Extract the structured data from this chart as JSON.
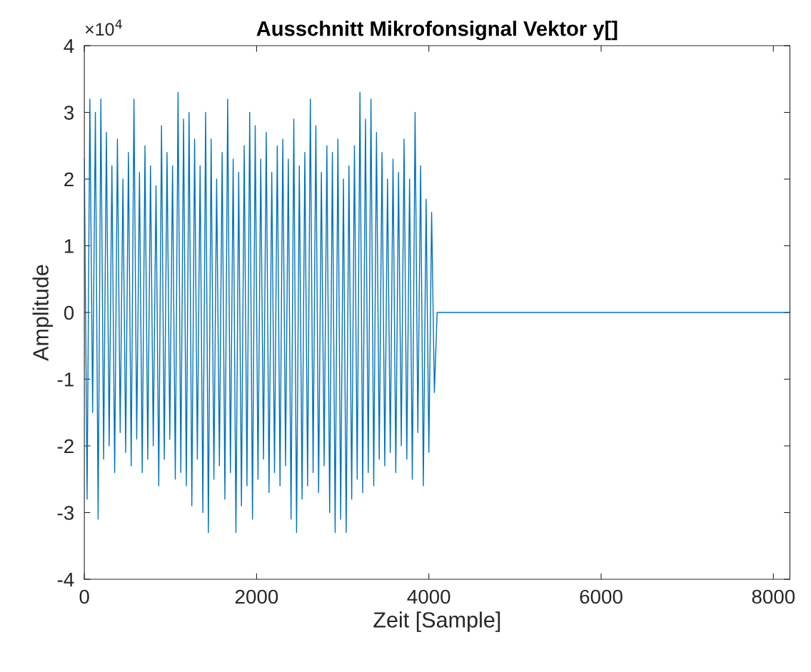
{
  "chart_data": {
    "type": "line",
    "title": "Ausschnitt Mikrofonsignal Vektor y[]",
    "xlabel": "Zeit [Sample]",
    "ylabel": "Amplitude",
    "annotations": [
      "×10$^{4}$"
    ],
    "x": [
      0,
      32,
      64,
      96,
      128,
      160,
      192,
      224,
      256,
      288,
      320,
      352,
      384,
      416,
      448,
      480,
      512,
      544,
      576,
      608,
      640,
      672,
      704,
      736,
      768,
      800,
      832,
      864,
      896,
      928,
      960,
      992,
      1024,
      1056,
      1088,
      1120,
      1152,
      1184,
      1216,
      1248,
      1280,
      1312,
      1344,
      1376,
      1408,
      1440,
      1472,
      1504,
      1536,
      1568,
      1600,
      1632,
      1664,
      1696,
      1728,
      1760,
      1792,
      1824,
      1856,
      1888,
      1920,
      1952,
      1984,
      2016,
      2048,
      2080,
      2112,
      2144,
      2176,
      2208,
      2240,
      2272,
      2304,
      2336,
      2368,
      2400,
      2432,
      2464,
      2496,
      2528,
      2560,
      2592,
      2624,
      2656,
      2688,
      2720,
      2752,
      2784,
      2816,
      2848,
      2880,
      2912,
      2944,
      2976,
      3008,
      3040,
      3072,
      3104,
      3136,
      3168,
      3200,
      3232,
      3264,
      3296,
      3328,
      3360,
      3392,
      3424,
      3456,
      3488,
      3520,
      3552,
      3584,
      3616,
      3648,
      3680,
      3712,
      3744,
      3776,
      3808,
      3840,
      3872,
      3904,
      3936,
      3968,
      4000,
      4032,
      4064,
      4096,
      8192
    ],
    "series": [
      {
        "color": "#0072bd",
        "values": [
          2.3,
          -2.8,
          3.2,
          -1.5,
          3.0,
          -3.1,
          3.2,
          -2.2,
          2.7,
          -2.0,
          2.2,
          -2.4,
          2.6,
          -1.8,
          2.0,
          -2.1,
          2.4,
          -2.3,
          3.2,
          -1.9,
          2.1,
          -2.4,
          2.5,
          -2.2,
          2.2,
          -2.0,
          1.9,
          -2.6,
          2.8,
          -2.2,
          2.4,
          -1.9,
          2.2,
          -2.5,
          3.3,
          -2.4,
          2.9,
          -2.6,
          3.0,
          -2.9,
          2.6,
          -2.2,
          2.2,
          -3.0,
          3.0,
          -3.3,
          2.6,
          -2.5,
          2.0,
          -2.3,
          2.4,
          -2.8,
          3.2,
          -2.4,
          2.3,
          -3.3,
          2.1,
          -2.9,
          2.5,
          -2.6,
          3.0,
          -3.1,
          2.8,
          -2.5,
          2.3,
          -2.2,
          2.7,
          -2.7,
          2.1,
          -2.4,
          2.5,
          -2.6,
          2.6,
          -2.3,
          2.3,
          -3.1,
          2.9,
          -3.3,
          2.2,
          -2.8,
          2.4,
          -2.6,
          3.2,
          -2.4,
          2.8,
          -2.7,
          2.1,
          -2.3,
          2.5,
          -3.0,
          2.4,
          -3.3,
          2.6,
          -3.1,
          2.0,
          -3.3,
          2.2,
          -2.8,
          2.5,
          -2.5,
          3.3,
          -2.7,
          2.9,
          -2.4,
          3.2,
          -2.6,
          2.7,
          -2.2,
          2.4,
          -2.3,
          2.0,
          -2.1,
          2.3,
          -2.4,
          2.1,
          -2.0,
          2.6,
          -2.2,
          2.0,
          -2.5,
          3.0,
          -1.8,
          2.2,
          -2.6,
          1.7,
          -2.1,
          1.5,
          -1.2,
          0,
          0
        ]
      }
    ],
    "xlim": [
      0,
      8192
    ],
    "xticks": [
      0,
      2000,
      4000,
      6000,
      8000
    ],
    "ylim": [
      -4,
      4
    ],
    "yticks": [
      -4,
      -3,
      -2,
      -1,
      0,
      1,
      2,
      3,
      4
    ],
    "grid": false,
    "legend": false,
    "marker": "none",
    "line_style": "solid"
  }
}
